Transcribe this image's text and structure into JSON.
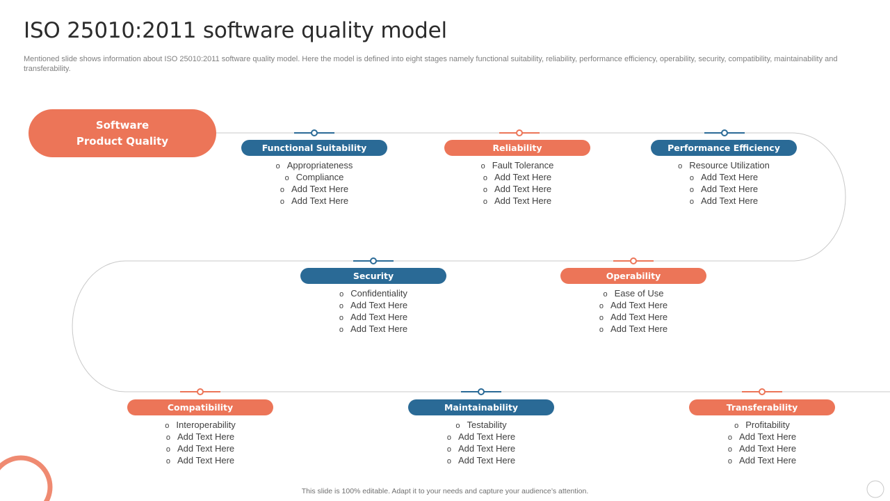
{
  "slide": {
    "title": "ISO 25010:2011 software quality model",
    "subtitle": "Mentioned slide shows information about ISO 25010:2011 software quality model. Here the model is defined into eight stages namely functional suitability, reliability, performance efficiency, operability, security, compatibility, maintainability and transferability.",
    "footer": "This slide is 100% editable.  Adapt it to your needs and capture your audience’s attention."
  },
  "colors": {
    "blue": "#2a6a96",
    "orange": "#ec7558",
    "path": "#c8c8c8"
  },
  "root": {
    "label": "Software\nProduct Quality"
  },
  "stages": [
    {
      "label": "Functional Suitability",
      "color": "blue",
      "items": [
        "Appropriateness",
        "Compliance",
        "Add Text Here",
        "Add Text Here"
      ]
    },
    {
      "label": "Reliability",
      "color": "orange",
      "items": [
        "Fault Tolerance",
        "Add Text Here",
        "Add Text Here",
        "Add Text Here"
      ]
    },
    {
      "label": "Performance Efficiency",
      "color": "blue",
      "items": [
        "Resource Utilization",
        "Add Text Here",
        "Add Text Here",
        "Add Text Here"
      ]
    },
    {
      "label": "Security",
      "color": "blue",
      "items": [
        "Confidentiality",
        "Add Text Here",
        "Add Text Here",
        "Add Text Here"
      ]
    },
    {
      "label": "Operability",
      "color": "orange",
      "items": [
        "Ease of Use",
        "Add Text Here",
        "Add Text Here",
        "Add Text Here"
      ]
    },
    {
      "label": "Compatibility",
      "color": "orange",
      "items": [
        "Interoperability",
        "Add Text Here",
        "Add Text Here",
        "Add Text Here"
      ]
    },
    {
      "label": "Maintainability",
      "color": "blue",
      "items": [
        "Testability",
        "Add Text Here",
        "Add Text Here",
        "Add Text Here"
      ]
    },
    {
      "label": "Transferability",
      "color": "orange",
      "items": [
        "Profitability",
        "Add Text Here",
        "Add Text Here",
        "Add Text Here"
      ]
    }
  ]
}
